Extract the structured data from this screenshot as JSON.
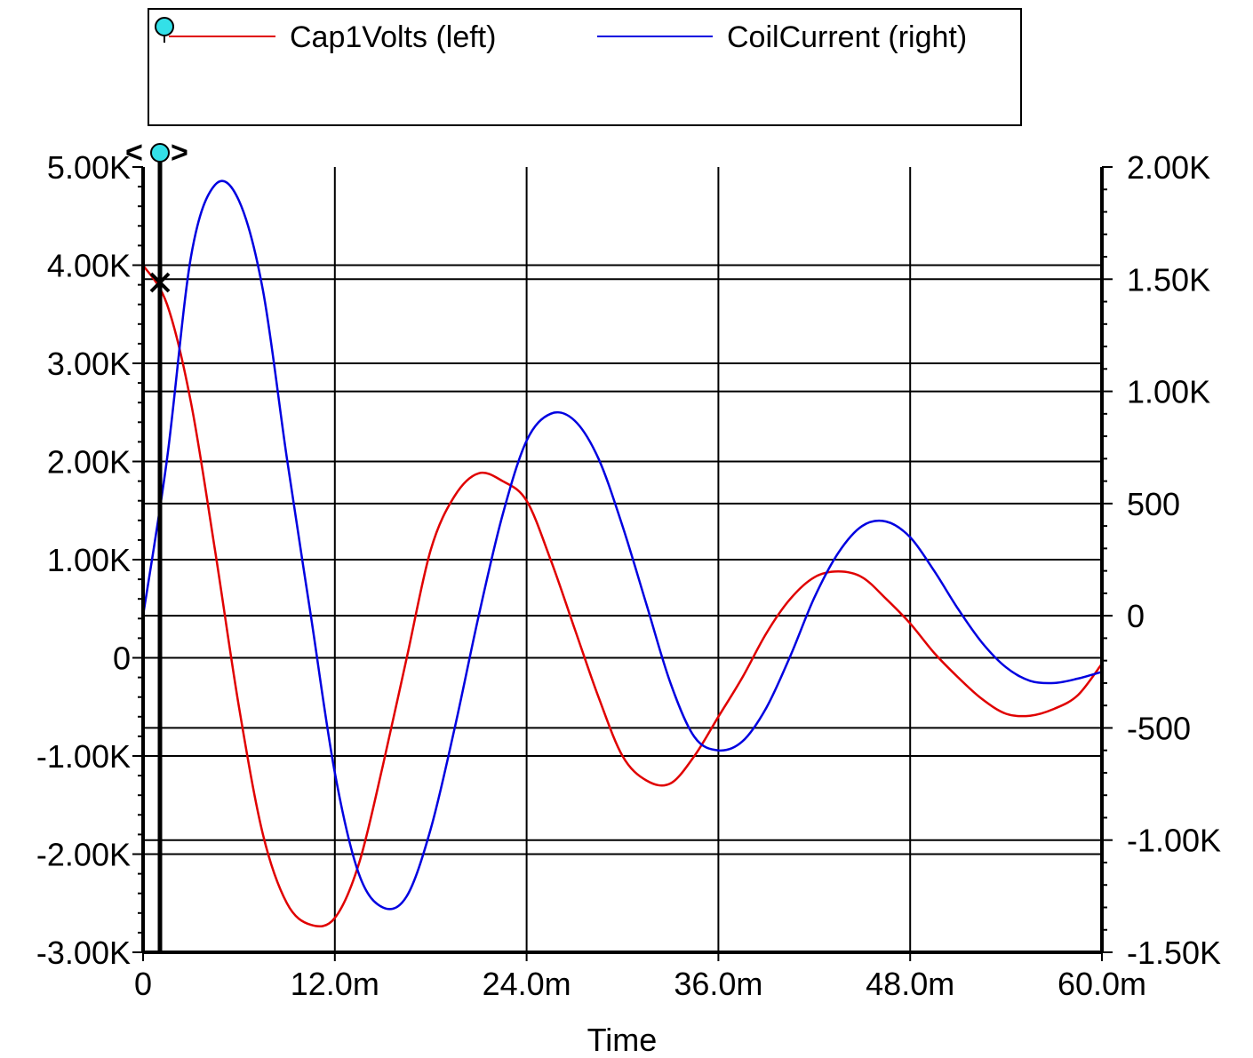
{
  "chart_data": {
    "type": "line",
    "xlabel": "Time",
    "x_ticks": [
      "0",
      "12.0m",
      "24.0m",
      "36.0m",
      "48.0m",
      "60.0m"
    ],
    "xlim": [
      0,
      0.06
    ],
    "y_left_ticks": [
      "5.00K",
      "4.00K",
      "3.00K",
      "2.00K",
      "1.00K",
      "0",
      "-1.00K",
      "-2.00K",
      "-3.00K"
    ],
    "ylim_left": [
      -3000,
      5000
    ],
    "y_right_ticks": [
      "2.00K",
      "1.50K",
      "1.00K",
      "500",
      "0",
      "-500",
      "-1.00K",
      "-1.50K"
    ],
    "ylim_right": [
      -1500,
      2000
    ],
    "grid": true,
    "legend_position": "top",
    "series": [
      {
        "name": "Cap1Volts (left)",
        "axis": "left",
        "color": "#e00000",
        "x": [
          0,
          0.0015,
          0.003,
          0.0045,
          0.006,
          0.0075,
          0.009,
          0.0105,
          0.012,
          0.0135,
          0.015,
          0.0165,
          0.018,
          0.0195,
          0.021,
          0.0225,
          0.024,
          0.0255,
          0.027,
          0.0285,
          0.03,
          0.0315,
          0.033,
          0.0345,
          0.036,
          0.0375,
          0.039,
          0.0405,
          0.042,
          0.0435,
          0.045,
          0.0465,
          0.048,
          0.0495,
          0.051,
          0.0525,
          0.054,
          0.0555,
          0.057,
          0.0585,
          0.06
        ],
        "y": [
          4000,
          3600,
          2600,
          1100,
          -500,
          -1800,
          -2500,
          -2720,
          -2650,
          -2100,
          -1100,
          0,
          1100,
          1650,
          1880,
          1800,
          1600,
          1000,
          300,
          -400,
          -1000,
          -1250,
          -1280,
          -1000,
          -600,
          -200,
          250,
          600,
          820,
          880,
          820,
          600,
          350,
          50,
          -200,
          -420,
          -570,
          -590,
          -520,
          -380,
          -60
        ]
      },
      {
        "name": "CoilCurrent (right)",
        "axis": "right",
        "color": "#0000e0",
        "x": [
          0,
          0.0015,
          0.003,
          0.0045,
          0.006,
          0.0075,
          0.009,
          0.0105,
          0.012,
          0.0135,
          0.015,
          0.0165,
          0.018,
          0.0195,
          0.021,
          0.0225,
          0.024,
          0.0255,
          0.027,
          0.0285,
          0.03,
          0.0315,
          0.033,
          0.0345,
          0.036,
          0.0375,
          0.039,
          0.0405,
          0.042,
          0.0435,
          0.045,
          0.0465,
          0.048,
          0.0495,
          0.051,
          0.0525,
          0.054,
          0.0555,
          0.057,
          0.0585,
          0.06
        ],
        "y": [
          0,
          700,
          1600,
          1920,
          1850,
          1450,
          700,
          0,
          -700,
          -1150,
          -1300,
          -1250,
          -950,
          -500,
          0,
          450,
          780,
          900,
          870,
          700,
          400,
          50,
          -300,
          -540,
          -600,
          -560,
          -410,
          -180,
          80,
          280,
          400,
          420,
          350,
          200,
          30,
          -120,
          -230,
          -290,
          -300,
          -280,
          -250
        ]
      }
    ]
  },
  "legend": {
    "items": [
      "Cap1Volts (left)",
      "CoilCurrent (right)"
    ]
  }
}
